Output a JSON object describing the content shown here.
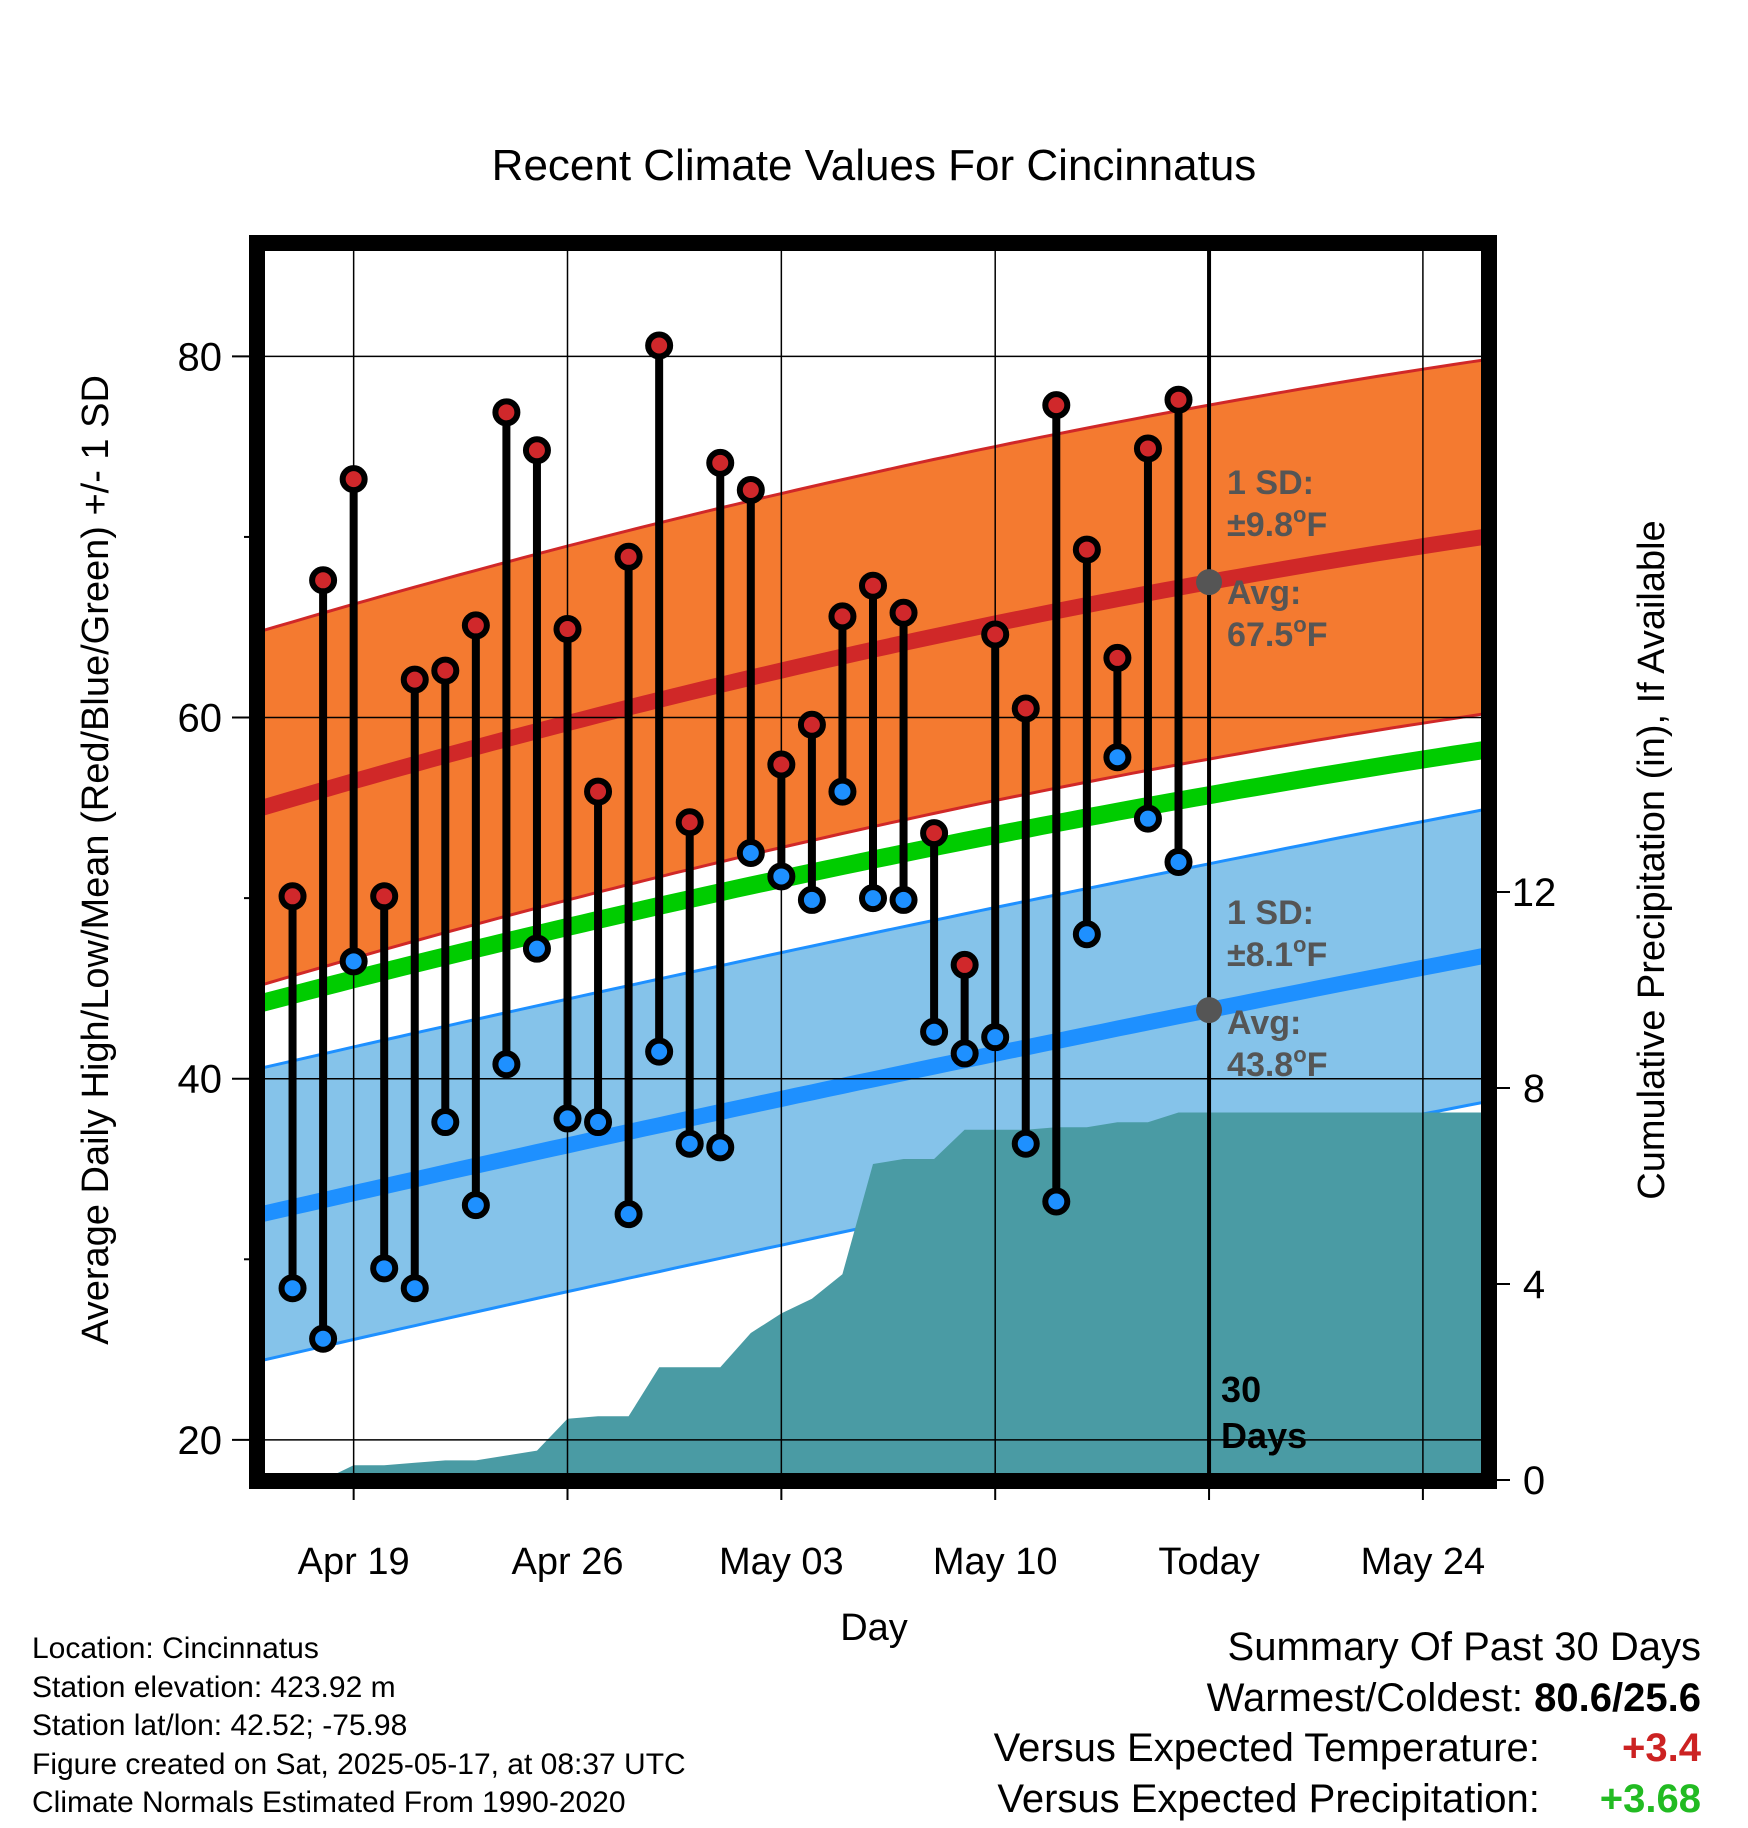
{
  "title": "Recent Climate Values For Cincinnatus",
  "colors": {
    "high_band": "#f47a30",
    "high_avg": "#d02828",
    "low_band": "#85c3ea",
    "low_avg": "#1e90ff",
    "mean_line": "#00cc00",
    "precip": "#4a9ba4",
    "high_dot": "#d0282b",
    "low_dot": "#1e90ff",
    "annotation": "#555555",
    "summary_red": "#cc2222",
    "summary_green": "#22bb22"
  },
  "chart_data": {
    "type": "line",
    "title": "Recent Climate Values For Cincinnatus",
    "xlabel": "Day",
    "ylabel": "Average Daily High/Low/Mean (Red/Blue/Green) +/- 1 SD",
    "y2label": "Cumulative Precipitation (in), If Available",
    "ylim": [
      18,
      86
    ],
    "y2lim": [
      0,
      25
    ],
    "yticks": [
      "20",
      "40",
      "60",
      "80"
    ],
    "y2ticks": [
      "0",
      "4",
      "8",
      "12"
    ],
    "xlim": [
      "Apr 16",
      "May 26"
    ],
    "xticks": [
      "Apr 19",
      "Apr 26",
      "May 03",
      "May 10",
      "Today",
      "May 24"
    ],
    "grid": true,
    "days": [
      "Apr 17",
      "Apr 18",
      "Apr 19",
      "Apr 20",
      "Apr 21",
      "Apr 22",
      "Apr 23",
      "Apr 24",
      "Apr 25",
      "Apr 26",
      "Apr 27",
      "Apr 28",
      "Apr 29",
      "Apr 30",
      "May 01",
      "May 02",
      "May 03",
      "May 04",
      "May 05",
      "May 06",
      "May 07",
      "May 08",
      "May 09",
      "May 10",
      "May 11",
      "May 12",
      "May 13",
      "May 14",
      "May 15",
      "May 16"
    ],
    "highs": [
      50.1,
      67.6,
      73.2,
      50.1,
      62.1,
      62.6,
      65.1,
      76.9,
      74.8,
      64.9,
      55.9,
      68.9,
      80.6,
      54.2,
      74.1,
      72.6,
      57.4,
      59.6,
      65.6,
      67.3,
      65.8,
      53.6,
      46.3,
      64.6,
      60.5,
      77.3,
      69.3,
      63.3,
      74.9,
      77.6
    ],
    "lows": [
      28.4,
      25.6,
      46.5,
      29.5,
      28.4,
      37.6,
      33.0,
      40.8,
      47.2,
      37.8,
      37.6,
      32.5,
      41.5,
      36.4,
      36.2,
      52.5,
      51.2,
      49.9,
      55.9,
      50.0,
      49.9,
      42.6,
      41.4,
      42.3,
      36.4,
      33.2,
      48.0,
      57.8,
      54.4,
      52.0
    ],
    "precip_cumulative": {
      "days": [
        "Apr 18",
        "Apr 19",
        "Apr 20",
        "Apr 21",
        "Apr 22",
        "Apr 23",
        "Apr 24",
        "Apr 25",
        "Apr 26",
        "Apr 27",
        "Apr 28",
        "Apr 29",
        "Apr 30",
        "May 01",
        "May 02",
        "May 03",
        "May 04",
        "May 05",
        "May 06",
        "May 07",
        "May 08",
        "May 09",
        "May 10",
        "May 11",
        "May 12",
        "May 13",
        "May 14",
        "May 15",
        "May 16",
        "May 26"
      ],
      "values": [
        0.0,
        0.3,
        0.3,
        0.35,
        0.4,
        0.4,
        0.5,
        0.6,
        1.25,
        1.3,
        1.3,
        2.3,
        2.3,
        2.3,
        3.0,
        3.4,
        3.7,
        4.2,
        6.45,
        6.55,
        6.55,
        7.15,
        7.15,
        7.15,
        7.2,
        7.2,
        7.3,
        7.3,
        7.5,
        7.5
      ]
    },
    "normals": {
      "x": [
        "Apr 16",
        "Today",
        "May 26"
      ],
      "high_avg": [
        55.0,
        67.5,
        70.0
      ],
      "high_sd": 9.8,
      "low_avg": [
        32.5,
        43.8,
        46.8
      ],
      "low_sd": 8.1,
      "mean": [
        44.2,
        55.7,
        58.2
      ]
    },
    "annotations": {
      "high_sd_label": "1 SD:",
      "high_sd_value": "±9.8",
      "high_avg_label": "Avg:",
      "high_avg_value": "67.5",
      "low_sd_label": "1 SD:",
      "low_sd_value": "±8.1",
      "low_avg_label": "Avg:",
      "low_avg_value": "43.8",
      "degree": "o",
      "unit": "F",
      "today_line_label_1": "30",
      "today_line_label_2": "Days"
    }
  },
  "info": {
    "location": "Location: Cincinnatus",
    "elevation": "Station elevation: 423.92 m",
    "latlon": "Station lat/lon: 42.52; -75.98",
    "created": "Figure created on Sat, 2025-05-17, at 08:37 UTC",
    "normals": "Climate Normals Estimated From 1990-2020"
  },
  "summary": {
    "heading": "Summary Of Past 30 Days",
    "warm_cold_label": "Warmest/Coldest:",
    "warm_cold_value": "80.6/25.6",
    "temp_label": "Versus Expected Temperature:",
    "temp_value": "+3.4",
    "precip_label": "Versus Expected Precipitation:",
    "precip_value": "+3.68"
  }
}
